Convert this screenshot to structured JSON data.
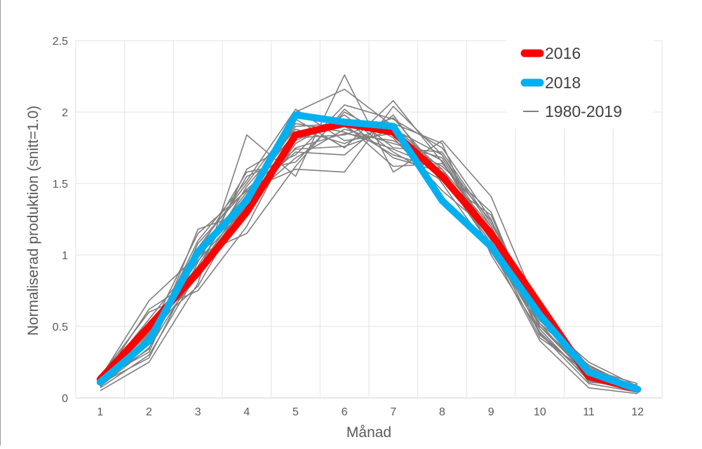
{
  "chart_data": {
    "type": "line",
    "xlabel": "Månad",
    "ylabel": "Normaliserad produktion (snitt=1.0)",
    "x": [
      1,
      2,
      3,
      4,
      5,
      6,
      7,
      8,
      9,
      10,
      11,
      12
    ],
    "x_tick_labels": [
      "1",
      "2",
      "3",
      "4",
      "5",
      "6",
      "7",
      "8",
      "9",
      "10",
      "11",
      "12"
    ],
    "ylim": [
      0,
      2.5
    ],
    "y_ticks": [
      0,
      0.5,
      1,
      1.5,
      2,
      2.5
    ],
    "y_tick_labels": [
      "0",
      "0.5",
      "1",
      "1.5",
      "2",
      "2.5"
    ],
    "grid": true,
    "legend_position": "top-right",
    "series": [
      {
        "name": "2016",
        "color": "#ff0000",
        "values": [
          0.13,
          0.5,
          0.88,
          1.3,
          1.84,
          1.92,
          1.86,
          1.55,
          1.15,
          0.65,
          0.15,
          0.06
        ]
      },
      {
        "name": "2018",
        "color": "#00b0f0",
        "values": [
          0.11,
          0.4,
          1.02,
          1.38,
          1.98,
          1.93,
          1.9,
          1.38,
          1.06,
          0.58,
          0.18,
          0.06
        ]
      }
    ],
    "background_series": {
      "name": "1980-2019",
      "color": "#808080",
      "lines": [
        [
          0.05,
          0.25,
          0.8,
          1.84,
          1.55,
          2.26,
          1.58,
          1.8,
          1.41,
          0.6,
          0.2,
          0.05
        ],
        [
          0.08,
          0.35,
          0.9,
          1.4,
          2.0,
          2.16,
          1.9,
          1.6,
          1.1,
          0.5,
          0.15,
          0.06
        ],
        [
          0.1,
          0.28,
          0.95,
          1.55,
          1.7,
          2.05,
          1.95,
          1.75,
          1.25,
          0.45,
          0.1,
          0.04
        ],
        [
          0.12,
          0.45,
          1.15,
          1.45,
          1.6,
          1.58,
          2.04,
          1.7,
          1.2,
          0.55,
          0.25,
          0.08
        ],
        [
          0.15,
          0.6,
          0.75,
          1.2,
          1.85,
          1.9,
          1.7,
          1.6,
          1.05,
          0.4,
          0.07,
          0.03
        ],
        [
          0.09,
          0.38,
          1.05,
          1.5,
          1.95,
          1.75,
          2.08,
          1.65,
          1.15,
          0.55,
          0.2,
          0.1
        ],
        [
          0.11,
          0.42,
          0.85,
          1.35,
          1.75,
          1.85,
          1.8,
          1.62,
          1.3,
          0.48,
          0.12,
          0.05
        ],
        [
          0.14,
          0.68,
          1.0,
          1.15,
          1.62,
          2.02,
          1.75,
          1.72,
          1.22,
          0.62,
          0.22,
          0.07
        ],
        [
          0.07,
          0.3,
          0.88,
          1.6,
          1.8,
          1.95,
          1.68,
          1.58,
          1.08,
          0.42,
          0.18,
          0.06
        ],
        [
          0.13,
          0.55,
          0.98,
          1.42,
          1.72,
          1.7,
          1.98,
          1.5,
          1.02,
          0.52,
          0.14,
          0.09
        ],
        [
          0.16,
          0.4,
          1.1,
          1.52,
          2.02,
          1.8,
          1.85,
          1.55,
          1.18,
          0.44,
          0.16,
          0.05
        ],
        [
          0.1,
          0.48,
          0.78,
          1.38,
          1.68,
          1.88,
          1.78,
          1.68,
          1.12,
          0.58,
          0.11,
          0.08
        ],
        [
          0.12,
          0.34,
          1.18,
          1.3,
          1.78,
          1.98,
          1.72,
          1.52,
          1.28,
          0.5,
          0.19,
          0.06
        ],
        [
          0.08,
          0.52,
          0.92,
          1.48,
          1.88,
          1.78,
          1.92,
          1.78,
          1.0,
          0.46,
          0.13,
          0.04
        ],
        [
          0.14,
          0.38,
          1.02,
          1.58,
          1.65,
          2.0,
          1.82,
          1.45,
          1.16,
          0.54,
          0.21,
          0.07
        ],
        [
          0.11,
          0.62,
          0.84,
          1.4,
          1.9,
          1.92,
          1.62,
          1.64,
          1.24,
          0.6,
          0.17,
          0.05
        ],
        [
          0.09,
          0.44,
          0.96,
          1.34,
          1.82,
          1.84,
          1.96,
          1.56,
          1.06,
          0.48,
          0.12,
          0.08
        ],
        [
          0.13,
          0.32,
          1.08,
          1.46,
          1.74,
          1.76,
          1.88,
          1.7,
          1.14,
          0.52,
          0.23,
          0.06
        ],
        [
          0.1,
          0.5,
          0.9,
          1.36,
          1.92,
          1.86,
          1.74,
          1.6,
          1.2,
          0.56,
          0.15,
          0.07
        ],
        [
          0.12,
          0.46,
          1.0,
          1.44,
          1.86,
          1.9,
          1.84,
          1.66,
          1.1,
          0.5,
          0.18,
          0.05
        ]
      ]
    }
  }
}
